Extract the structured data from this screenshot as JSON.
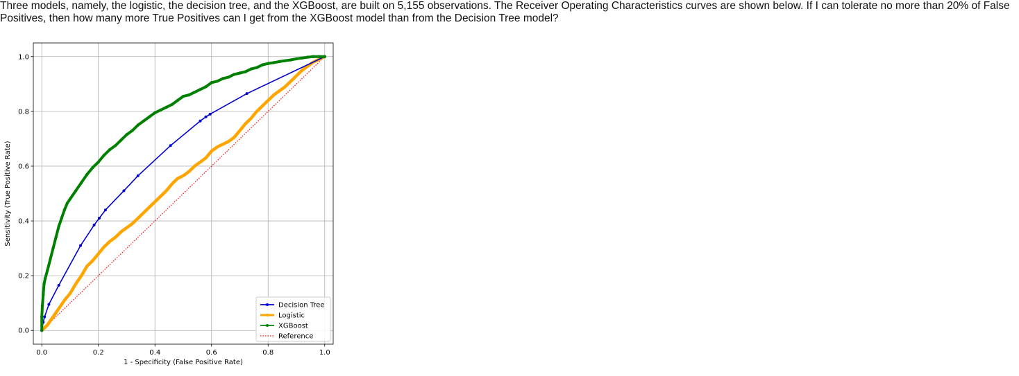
{
  "question": {
    "text": "Three models, namely, the logistic, the decision tree, and the XGBoost, are built on 5,155 observations.  The Receiver Operating Characteristics curves are shown below.   If I can tolerate no more than 20% of False Positives, then how many more True Positives can I get from the XGBoost model than from the Decision Tree model?"
  },
  "chart_data": {
    "type": "line",
    "title": "",
    "xlabel": "1 - Specificity (False Positive Rate)",
    "ylabel": "Sensitivity (True Positive Rate)",
    "xlim": [
      -0.03,
      1.03
    ],
    "ylim": [
      -0.05,
      1.05
    ],
    "xticks": [
      0.0,
      0.2,
      0.4,
      0.6,
      0.8,
      1.0
    ],
    "yticks": [
      0.0,
      0.2,
      0.4,
      0.6,
      0.8,
      1.0
    ],
    "xtick_labels": [
      "0.0",
      "0.2",
      "0.4",
      "0.6",
      "0.8",
      "1.0"
    ],
    "ytick_labels": [
      "0.0",
      "0.2",
      "0.4",
      "0.6",
      "0.8",
      "1.0"
    ],
    "grid": true,
    "legend_position": "lower-right",
    "series": [
      {
        "name": "Decision Tree",
        "color": "#0000cc",
        "style": "solid-marker",
        "points": [
          [
            0,
            0
          ],
          [
            0.005,
            0.03
          ],
          [
            0.01,
            0.05
          ],
          [
            0.025,
            0.095
          ],
          [
            0.06,
            0.165
          ],
          [
            0.137,
            0.31
          ],
          [
            0.185,
            0.385
          ],
          [
            0.203,
            0.41
          ],
          [
            0.225,
            0.44
          ],
          [
            0.29,
            0.51
          ],
          [
            0.34,
            0.565
          ],
          [
            0.455,
            0.675
          ],
          [
            0.56,
            0.765
          ],
          [
            0.58,
            0.78
          ],
          [
            0.595,
            0.79
          ],
          [
            0.725,
            0.865
          ],
          [
            1.0,
            1.0
          ]
        ]
      },
      {
        "name": "Logistic",
        "color": "#ffa500",
        "style": "solid-thick",
        "points": [
          [
            0,
            0
          ],
          [
            0.02,
            0.02
          ],
          [
            0.04,
            0.05
          ],
          [
            0.06,
            0.08
          ],
          [
            0.08,
            0.11
          ],
          [
            0.1,
            0.135
          ],
          [
            0.12,
            0.17
          ],
          [
            0.14,
            0.2
          ],
          [
            0.16,
            0.235
          ],
          [
            0.18,
            0.255
          ],
          [
            0.2,
            0.28
          ],
          [
            0.22,
            0.305
          ],
          [
            0.24,
            0.325
          ],
          [
            0.26,
            0.34
          ],
          [
            0.28,
            0.36
          ],
          [
            0.3,
            0.375
          ],
          [
            0.32,
            0.39
          ],
          [
            0.34,
            0.41
          ],
          [
            0.36,
            0.43
          ],
          [
            0.38,
            0.45
          ],
          [
            0.4,
            0.47
          ],
          [
            0.42,
            0.49
          ],
          [
            0.44,
            0.51
          ],
          [
            0.46,
            0.535
          ],
          [
            0.48,
            0.555
          ],
          [
            0.5,
            0.565
          ],
          [
            0.52,
            0.58
          ],
          [
            0.54,
            0.6
          ],
          [
            0.56,
            0.615
          ],
          [
            0.58,
            0.63
          ],
          [
            0.6,
            0.655
          ],
          [
            0.62,
            0.67
          ],
          [
            0.64,
            0.68
          ],
          [
            0.66,
            0.69
          ],
          [
            0.68,
            0.705
          ],
          [
            0.7,
            0.73
          ],
          [
            0.72,
            0.755
          ],
          [
            0.74,
            0.775
          ],
          [
            0.76,
            0.8
          ],
          [
            0.78,
            0.82
          ],
          [
            0.8,
            0.84
          ],
          [
            0.82,
            0.86
          ],
          [
            0.84,
            0.875
          ],
          [
            0.86,
            0.89
          ],
          [
            0.88,
            0.91
          ],
          [
            0.9,
            0.93
          ],
          [
            0.92,
            0.95
          ],
          [
            0.94,
            0.965
          ],
          [
            0.96,
            0.98
          ],
          [
            0.98,
            0.99
          ],
          [
            1.0,
            1.0
          ]
        ]
      },
      {
        "name": "XGBoost",
        "color": "#008000",
        "style": "solid-marker",
        "points": [
          [
            0,
            0
          ],
          [
            0.0,
            0.05
          ],
          [
            0.002,
            0.09
          ],
          [
            0.005,
            0.13
          ],
          [
            0.008,
            0.17
          ],
          [
            0.012,
            0.19
          ],
          [
            0.02,
            0.22
          ],
          [
            0.03,
            0.26
          ],
          [
            0.04,
            0.3
          ],
          [
            0.05,
            0.34
          ],
          [
            0.06,
            0.38
          ],
          [
            0.07,
            0.41
          ],
          [
            0.08,
            0.44
          ],
          [
            0.09,
            0.465
          ],
          [
            0.1,
            0.48
          ],
          [
            0.12,
            0.51
          ],
          [
            0.14,
            0.54
          ],
          [
            0.16,
            0.57
          ],
          [
            0.18,
            0.595
          ],
          [
            0.2,
            0.615
          ],
          [
            0.22,
            0.64
          ],
          [
            0.24,
            0.66
          ],
          [
            0.26,
            0.675
          ],
          [
            0.28,
            0.695
          ],
          [
            0.3,
            0.715
          ],
          [
            0.32,
            0.73
          ],
          [
            0.34,
            0.75
          ],
          [
            0.36,
            0.765
          ],
          [
            0.38,
            0.78
          ],
          [
            0.4,
            0.795
          ],
          [
            0.42,
            0.805
          ],
          [
            0.44,
            0.815
          ],
          [
            0.46,
            0.825
          ],
          [
            0.48,
            0.84
          ],
          [
            0.5,
            0.855
          ],
          [
            0.52,
            0.86
          ],
          [
            0.54,
            0.87
          ],
          [
            0.56,
            0.88
          ],
          [
            0.58,
            0.89
          ],
          [
            0.6,
            0.905
          ],
          [
            0.62,
            0.91
          ],
          [
            0.64,
            0.92
          ],
          [
            0.66,
            0.925
          ],
          [
            0.68,
            0.935
          ],
          [
            0.7,
            0.94
          ],
          [
            0.72,
            0.945
          ],
          [
            0.74,
            0.955
          ],
          [
            0.76,
            0.96
          ],
          [
            0.78,
            0.97
          ],
          [
            0.8,
            0.975
          ],
          [
            0.82,
            0.978
          ],
          [
            0.84,
            0.982
          ],
          [
            0.86,
            0.985
          ],
          [
            0.88,
            0.988
          ],
          [
            0.9,
            0.992
          ],
          [
            0.92,
            0.995
          ],
          [
            0.94,
            0.998
          ],
          [
            0.96,
            1.0
          ],
          [
            0.98,
            1.0
          ],
          [
            1.0,
            1.0
          ]
        ]
      },
      {
        "name": "Reference",
        "color": "#ff0000",
        "style": "dotted",
        "points": [
          [
            0,
            0
          ],
          [
            1.0,
            1.0
          ]
        ]
      }
    ]
  }
}
